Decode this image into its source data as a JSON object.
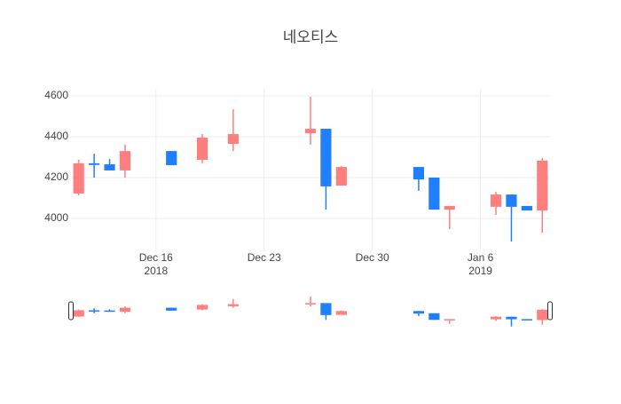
{
  "chart_data": {
    "type": "candlestick",
    "title": "네오티스",
    "x": [
      "2018-12-11",
      "2018-12-12",
      "2018-12-13",
      "2018-12-14",
      "2018-12-17",
      "2018-12-19",
      "2018-12-21",
      "2018-12-26",
      "2018-12-27",
      "2018-12-28",
      "2019-01-02",
      "2019-01-03",
      "2019-01-04",
      "2019-01-07",
      "2019-01-08",
      "2019-01-09",
      "2019-01-10"
    ],
    "open": [
      4122,
      4270,
      4265,
      4235,
      4330,
      4287,
      4365,
      4417,
      4439,
      4161,
      4252,
      4200,
      4043,
      4057,
      4117,
      4061,
      4039
    ],
    "high": [
      4287,
      4317,
      4291,
      4361,
      4330,
      4413,
      4535,
      4596,
      4439,
      4257,
      4252,
      4200,
      4061,
      4130,
      4117,
      4061,
      4296
    ],
    "low": [
      4113,
      4200,
      4235,
      4200,
      4261,
      4270,
      4330,
      4361,
      4043,
      4161,
      4135,
      4043,
      3948,
      4017,
      3887,
      4039,
      3930
    ],
    "close": [
      4270,
      4262,
      4235,
      4330,
      4261,
      4396,
      4413,
      4439,
      4157,
      4252,
      4191,
      4043,
      4061,
      4117,
      4057,
      4039,
      4283
    ],
    "increasing_color": "#ff7f7f",
    "decreasing_color": "#1f7fff",
    "xlim": [
      "2018-12-10 12:00",
      "2019-01-10 12:00"
    ],
    "xticks": [
      {
        "value": "2018-12-16",
        "label": "Dec 16",
        "year": "2018"
      },
      {
        "value": "2018-12-23",
        "label": "Dec 23"
      },
      {
        "value": "2018-12-30",
        "label": "Dec 30"
      },
      {
        "value": "2019-01-06",
        "label": "Jan 6",
        "year": "2019"
      }
    ],
    "ylim": [
      3839,
      4635
    ],
    "yticks": [
      4000,
      4200,
      4400,
      4600
    ],
    "grid": true,
    "rangeslider": true
  }
}
